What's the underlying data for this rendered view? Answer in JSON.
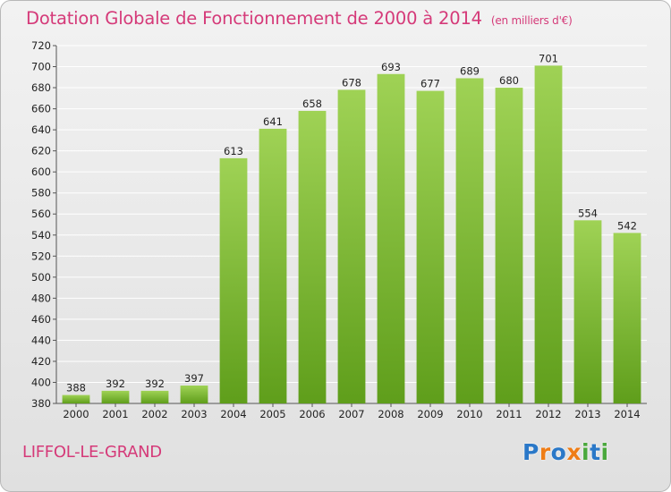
{
  "header": {
    "title": "Dotation Globale de Fonctionnement de 2000 à 2014",
    "subtitle": "(en milliers d'€)"
  },
  "footer": {
    "commune": "LIFFOL-LE-GRAND",
    "brand": "Proxiti",
    "brand_letters": [
      "P",
      "r",
      "o",
      "x",
      "i",
      "t",
      "i"
    ],
    "brand_colors": [
      "#2a78c8",
      "#ef7d16",
      "#2a78c8",
      "#ef7d16",
      "#4aa83c",
      "#2a78c8",
      "#4aa83c"
    ]
  },
  "colors": {
    "bar_top": "#9fd255",
    "bar_bottom": "#5f9e1b",
    "accent": "#d53a79",
    "grid": "#ffffff"
  },
  "chart_data": {
    "type": "bar",
    "title": "Dotation Globale de Fonctionnement de 2000 à 2014",
    "subtitle": "(en milliers d'€)",
    "categories": [
      "2000",
      "2001",
      "2002",
      "2003",
      "2004",
      "2005",
      "2006",
      "2007",
      "2008",
      "2009",
      "2010",
      "2011",
      "2012",
      "2013",
      "2014"
    ],
    "values": [
      388,
      392,
      392,
      397,
      613,
      641,
      658,
      678,
      693,
      677,
      689,
      680,
      701,
      554,
      542
    ],
    "ylim": [
      380,
      720
    ],
    "yticks": [
      380,
      400,
      420,
      440,
      460,
      480,
      500,
      520,
      540,
      560,
      580,
      600,
      620,
      640,
      660,
      680,
      700,
      720
    ],
    "grid": true,
    "legend": "none"
  }
}
